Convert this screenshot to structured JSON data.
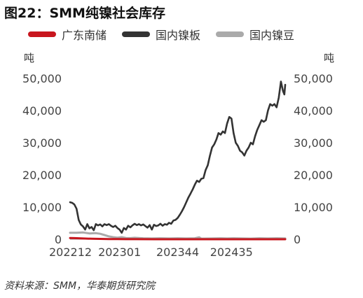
{
  "chart_data": {
    "type": "line",
    "title": "图22：SMM纯镍社会库存",
    "source": "资料来源：SMM，华泰期货研究院",
    "ylabel_left": "吨",
    "ylabel_right": "吨",
    "ylim": [
      0,
      50000
    ],
    "yticks": [
      0,
      10000,
      20000,
      30000,
      40000,
      50000
    ],
    "ytick_labels": [
      "0",
      "10,000",
      "20,000",
      "30,000",
      "40,000",
      "50,000"
    ],
    "x_range": [
      0,
      100
    ],
    "x_tick_positions": [
      0,
      23,
      50,
      75
    ],
    "x_tick_labels": [
      "202212",
      "202301",
      "202344",
      "202435"
    ],
    "legend_position": "top",
    "series": [
      {
        "name": "广东南储",
        "color": "#c8161e",
        "points": [
          [
            0,
            400
          ],
          [
            2,
            350
          ],
          [
            4,
            300
          ],
          [
            6,
            250
          ],
          [
            8,
            200
          ],
          [
            10,
            150
          ],
          [
            12,
            120
          ],
          [
            14,
            100
          ],
          [
            16,
            80
          ],
          [
            18,
            60
          ],
          [
            20,
            50
          ],
          [
            22,
            40
          ],
          [
            26,
            30
          ],
          [
            30,
            20
          ],
          [
            40,
            10
          ],
          [
            60,
            5
          ],
          [
            80,
            0
          ],
          [
            100,
            0
          ]
        ]
      },
      {
        "name": "国内镍板",
        "color": "#333333",
        "points": [
          [
            0,
            11500
          ],
          [
            1,
            11300
          ],
          [
            2,
            10800
          ],
          [
            3,
            9500
          ],
          [
            4,
            6000
          ],
          [
            5,
            4600
          ],
          [
            6,
            4000
          ],
          [
            7,
            3000
          ],
          [
            8,
            4700
          ],
          [
            9,
            3400
          ],
          [
            10,
            3800
          ],
          [
            11,
            2800
          ],
          [
            12,
            4700
          ],
          [
            13,
            4300
          ],
          [
            14,
            4600
          ],
          [
            15,
            4000
          ],
          [
            16,
            4700
          ],
          [
            17,
            4400
          ],
          [
            18,
            4700
          ],
          [
            19,
            4200
          ],
          [
            20,
            3800
          ],
          [
            21,
            4200
          ],
          [
            22,
            3500
          ],
          [
            23,
            3000
          ],
          [
            24,
            2000
          ],
          [
            25,
            3500
          ],
          [
            26,
            3000
          ],
          [
            27,
            4200
          ],
          [
            28,
            3700
          ],
          [
            29,
            4300
          ],
          [
            30,
            4800
          ],
          [
            31,
            4400
          ],
          [
            32,
            4700
          ],
          [
            33,
            4300
          ],
          [
            34,
            4600
          ],
          [
            35,
            4100
          ],
          [
            36,
            3600
          ],
          [
            37,
            4400
          ],
          [
            38,
            3000
          ],
          [
            39,
            4500
          ],
          [
            40,
            4100
          ],
          [
            41,
            4300
          ],
          [
            42,
            4800
          ],
          [
            43,
            4200
          ],
          [
            44,
            4700
          ],
          [
            45,
            4500
          ],
          [
            46,
            5100
          ],
          [
            47,
            4800
          ],
          [
            48,
            5800
          ],
          [
            49,
            6000
          ],
          [
            50,
            6600
          ],
          [
            51,
            7600
          ],
          [
            52,
            8700
          ],
          [
            53,
            10000
          ],
          [
            54,
            11500
          ],
          [
            55,
            13000
          ],
          [
            56,
            14200
          ],
          [
            57,
            15500
          ],
          [
            58,
            17000
          ],
          [
            59,
            18200
          ],
          [
            60,
            17800
          ],
          [
            61,
            18800
          ],
          [
            62,
            19000
          ],
          [
            63,
            21500
          ],
          [
            64,
            23000
          ],
          [
            65,
            26000
          ],
          [
            66,
            28500
          ],
          [
            67,
            29500
          ],
          [
            68,
            31000
          ],
          [
            69,
            33000
          ],
          [
            70,
            32500
          ],
          [
            71,
            33500
          ],
          [
            72,
            33000
          ],
          [
            73,
            36000
          ],
          [
            74,
            38000
          ],
          [
            75,
            37500
          ],
          [
            76,
            33000
          ],
          [
            77,
            30000
          ],
          [
            78,
            29000
          ],
          [
            79,
            27500
          ],
          [
            80,
            27000
          ],
          [
            81,
            26000
          ],
          [
            82,
            27500
          ],
          [
            83,
            28500
          ],
          [
            84,
            30000
          ],
          [
            85,
            29500
          ],
          [
            86,
            32000
          ],
          [
            87,
            34000
          ],
          [
            88,
            35500
          ],
          [
            89,
            37000
          ],
          [
            90,
            36500
          ],
          [
            91,
            37000
          ],
          [
            92,
            40000
          ],
          [
            93,
            42000
          ],
          [
            94,
            41500
          ],
          [
            95,
            42000
          ],
          [
            96,
            41000
          ],
          [
            97,
            44000
          ],
          [
            98,
            49000
          ],
          [
            99,
            46000
          ],
          [
            99.6,
            45000
          ],
          [
            100,
            48000
          ]
        ]
      },
      {
        "name": "国内镍豆",
        "color": "#aaaaaa",
        "points": [
          [
            0,
            2000
          ],
          [
            3,
            2000
          ],
          [
            6,
            2100
          ],
          [
            9,
            1800
          ],
          [
            12,
            1900
          ],
          [
            14,
            1700
          ],
          [
            16,
            1300
          ],
          [
            18,
            900
          ],
          [
            20,
            650
          ],
          [
            22,
            500
          ],
          [
            24,
            650
          ],
          [
            26,
            400
          ],
          [
            28,
            350
          ],
          [
            30,
            450
          ],
          [
            34,
            300
          ],
          [
            38,
            250
          ],
          [
            42,
            300
          ],
          [
            46,
            250
          ],
          [
            50,
            300
          ],
          [
            54,
            250
          ],
          [
            58,
            300
          ],
          [
            60,
            600
          ],
          [
            61,
            200
          ],
          [
            66,
            250
          ],
          [
            70,
            300
          ],
          [
            73,
            250
          ],
          [
            76,
            300
          ],
          [
            80,
            250
          ],
          [
            84,
            200
          ],
          [
            88,
            300
          ],
          [
            92,
            250
          ],
          [
            96,
            300
          ],
          [
            100,
            250
          ]
        ]
      }
    ]
  }
}
